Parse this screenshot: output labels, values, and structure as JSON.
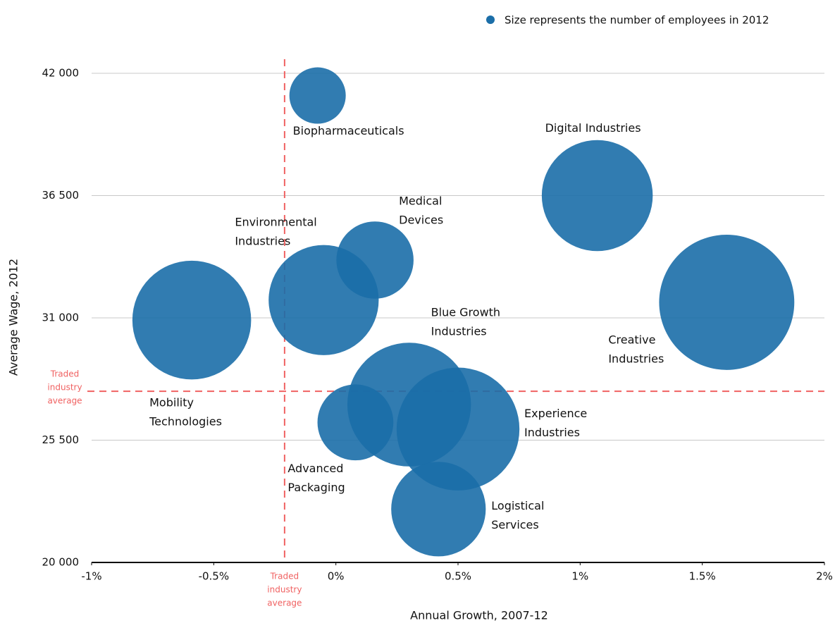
{
  "chart_data": {
    "type": "bubble",
    "legend": "Size represents the number of employees in 2012",
    "legend_position": "top-right",
    "xlabel": "Annual Growth, 2007-12",
    "ylabel": "Average Wage, 2012",
    "color": "#1b6ea8",
    "labels": [
      [
        "Biopharmaceuticals"
      ],
      [
        "Digital Industries"
      ],
      [
        "Medical",
        "Devices"
      ],
      [
        "Environmental",
        "Industries"
      ],
      [
        "Mobility",
        "Technologies"
      ],
      [
        "Creative",
        "Industries"
      ],
      [
        "Blue Growth",
        "Industries"
      ],
      [
        "Experience",
        "Industries"
      ],
      [
        "Advanced",
        "Packaging"
      ],
      [
        "Logistical",
        "Services"
      ]
    ],
    "x": [
      -0.075,
      1.07,
      0.16,
      -0.05,
      -0.59,
      1.6,
      0.3,
      0.5,
      0.08,
      0.42
    ],
    "values": [
      41000,
      36500,
      33600,
      31800,
      30900,
      31700,
      27100,
      26000,
      26300,
      22400
    ],
    "sizes": [
      16,
      62,
      30,
      61,
      71,
      92,
      77,
      76,
      29,
      45
    ],
    "xlim": [
      -1,
      2
    ],
    "ylim": [
      20000,
      42000
    ],
    "xticks": [
      {
        "value": -1,
        "label": "-1%"
      },
      {
        "value": -0.5,
        "label": "-0.5%"
      },
      {
        "value": 0,
        "label": "0%"
      },
      {
        "value": 0.5,
        "label": "0.5%"
      },
      {
        "value": 1,
        "label": "1%"
      },
      {
        "value": 1.5,
        "label": "1.5%"
      },
      {
        "value": 2,
        "label": "2%"
      }
    ],
    "yticks": [
      {
        "value": 20000,
        "label": "20 000"
      },
      {
        "value": 25500,
        "label": "25 500"
      },
      {
        "value": 31000,
        "label": "31 000"
      },
      {
        "value": 36500,
        "label": "36 500"
      },
      {
        "value": 42000,
        "label": "42 000"
      }
    ],
    "grid": true,
    "reference": {
      "x": -0.21,
      "y": 27700,
      "label": [
        "Traded",
        "industry",
        "average"
      ],
      "color": "#f06262"
    }
  }
}
